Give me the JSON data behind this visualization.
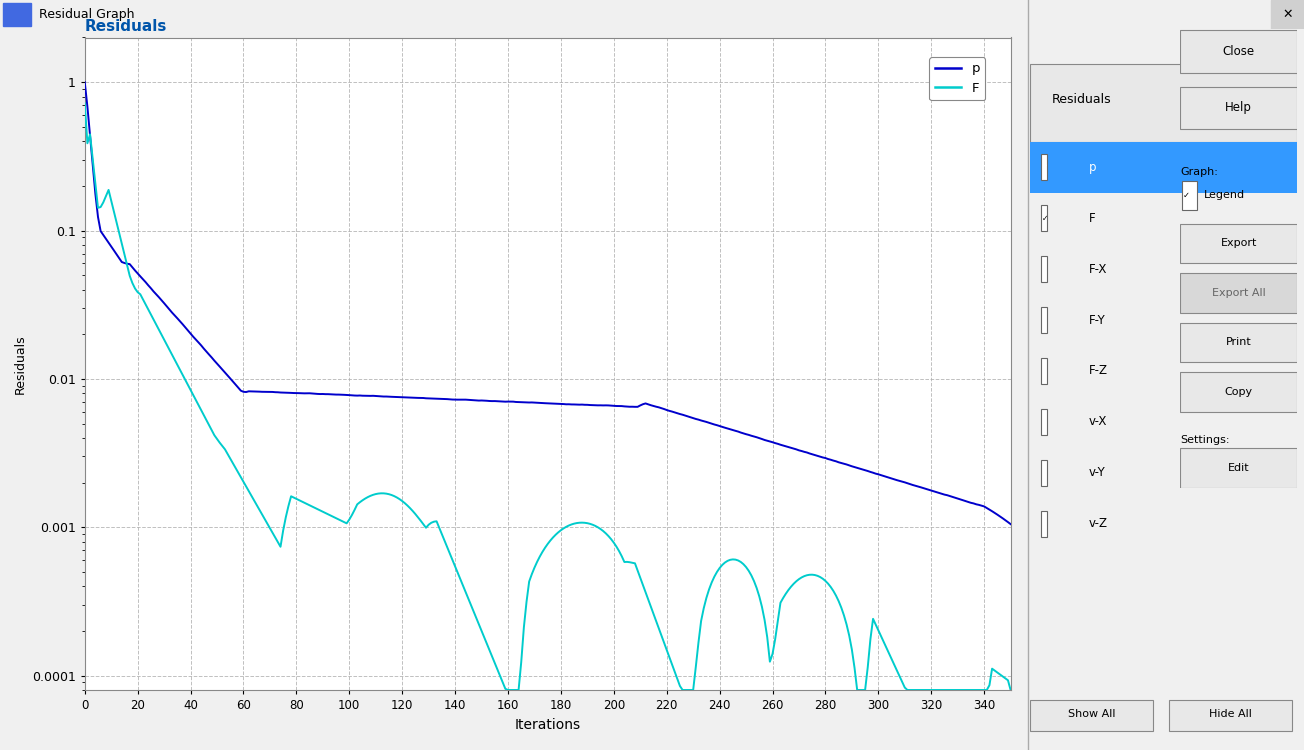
{
  "title": "Residuals",
  "xlabel": "Iterations",
  "ylabel": "Residuals",
  "xlim": [
    0,
    350
  ],
  "xticks": [
    0,
    20,
    40,
    60,
    80,
    100,
    120,
    140,
    160,
    180,
    200,
    220,
    240,
    260,
    280,
    300,
    320,
    340
  ],
  "yticks": [
    0.0001,
    0.001,
    0.01,
    0.1,
    1
  ],
  "ytick_labels": [
    "0.0001",
    "0.001",
    "0.01",
    "0.1",
    "1"
  ],
  "color_p": "#0000cc",
  "color_F": "#00cccc",
  "bg_color": "#f0f0f0",
  "plot_bg": "#ffffff",
  "grid_color": "#b0b0b0",
  "title_color": "#0055aa",
  "window_title": "Residual Graph",
  "side_panel_items": [
    "p",
    "F",
    "F-X",
    "F-Y",
    "F-Z",
    "v-X",
    "v-Y",
    "v-Z"
  ],
  "button_labels": [
    "Close",
    "Help"
  ],
  "graph_buttons": [
    "Export",
    "Export All",
    "Print",
    "Copy"
  ],
  "settings_buttons": [
    "Edit"
  ],
  "legend_labels": [
    "p",
    "F"
  ]
}
